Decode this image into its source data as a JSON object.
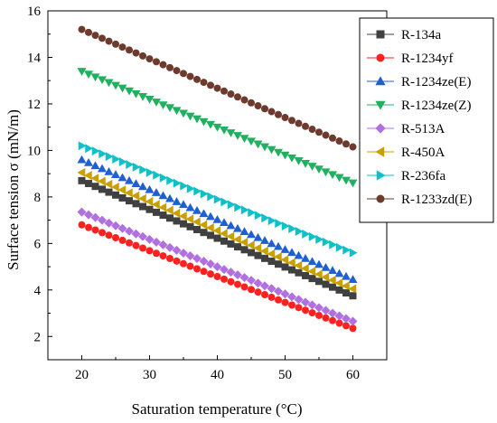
{
  "chart_data": {
    "type": "scatter",
    "title": "",
    "xlabel": "Saturation temperature (°C)",
    "ylabel": "Surface tension σ (mN/m)",
    "xlim": [
      15,
      65
    ],
    "ylim": [
      1,
      16
    ],
    "xticks": [
      20,
      30,
      40,
      50,
      60
    ],
    "yticks": [
      2,
      4,
      6,
      8,
      10,
      12,
      14,
      16
    ],
    "grid": false,
    "legend_position": "top-right",
    "x_start": 20,
    "x_step": 1,
    "x_end": 60,
    "series": [
      {
        "name": "R-134a",
        "start": 8.7,
        "end": 3.75,
        "color": "#404040",
        "marker": "square"
      },
      {
        "name": "R-1234yf",
        "start": 6.8,
        "end": 2.35,
        "color": "#ff2020",
        "marker": "circle"
      },
      {
        "name": "R-1234ze(E)",
        "start": 9.6,
        "end": 4.45,
        "color": "#1f5fd0",
        "marker": "triangle-up"
      },
      {
        "name": "R-1234ze(Z)",
        "start": 13.4,
        "end": 8.6,
        "color": "#20b060",
        "marker": "triangle-down"
      },
      {
        "name": "R-513A",
        "start": 7.35,
        "end": 2.65,
        "color": "#b070e0",
        "marker": "diamond"
      },
      {
        "name": "R-450A",
        "start": 9.05,
        "end": 4.05,
        "color": "#c8a000",
        "marker": "triangle-left"
      },
      {
        "name": "R-236fa",
        "start": 10.2,
        "end": 5.6,
        "color": "#10c0c8",
        "marker": "triangle-right"
      },
      {
        "name": "R-1233zd(E)",
        "start": 15.2,
        "end": 10.15,
        "color": "#6e3a2e",
        "marker": "circle"
      }
    ]
  }
}
